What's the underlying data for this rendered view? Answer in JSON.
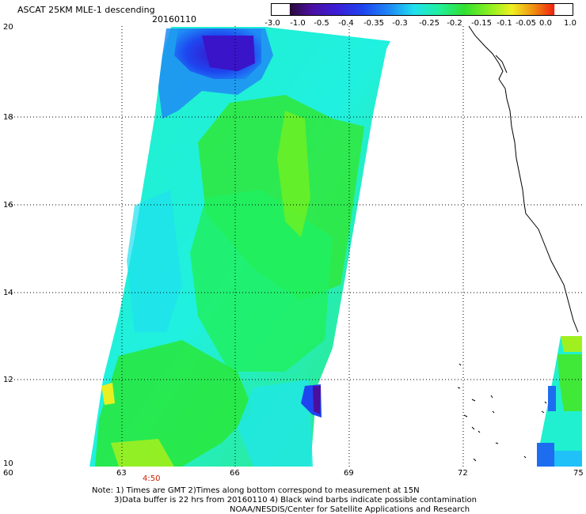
{
  "header": {
    "title": "ASCAT 25KM MLE-1 descending",
    "date": "20160110"
  },
  "colorbar": {
    "labels": [
      "-3.0",
      "-1.0",
      "-0.5",
      "-0.4",
      "-0.35",
      "-0.3",
      "-0.25",
      "-0.2",
      "-0.15",
      "-0.1",
      "-0.05",
      "0.0",
      "1.0"
    ],
    "colors": [
      "#2a0a3a",
      "#4b0fa0",
      "#3a1ed8",
      "#1e46f0",
      "#1e8cf5",
      "#20c8f8",
      "#20f0d8",
      "#20f080",
      "#30e030",
      "#90f020",
      "#f0f020",
      "#f09010",
      "#f02010"
    ]
  },
  "axes": {
    "y_ticks": [
      "20",
      "18",
      "16",
      "14",
      "12",
      "10"
    ],
    "x_ticks": [
      "60",
      "63",
      "66",
      "69",
      "72",
      "75"
    ]
  },
  "time_label": "4:50",
  "notes": {
    "line1": "Note: 1) Times are GMT 2)Times along bottom correspond to measurement at 15N",
    "line2": "3)Data buffer is 22 hrs from 20160110 4) Black wind barbs indicate possible contamination",
    "line3": "NOAA/NESDIS/Center for Satellite Applications and Research"
  }
}
